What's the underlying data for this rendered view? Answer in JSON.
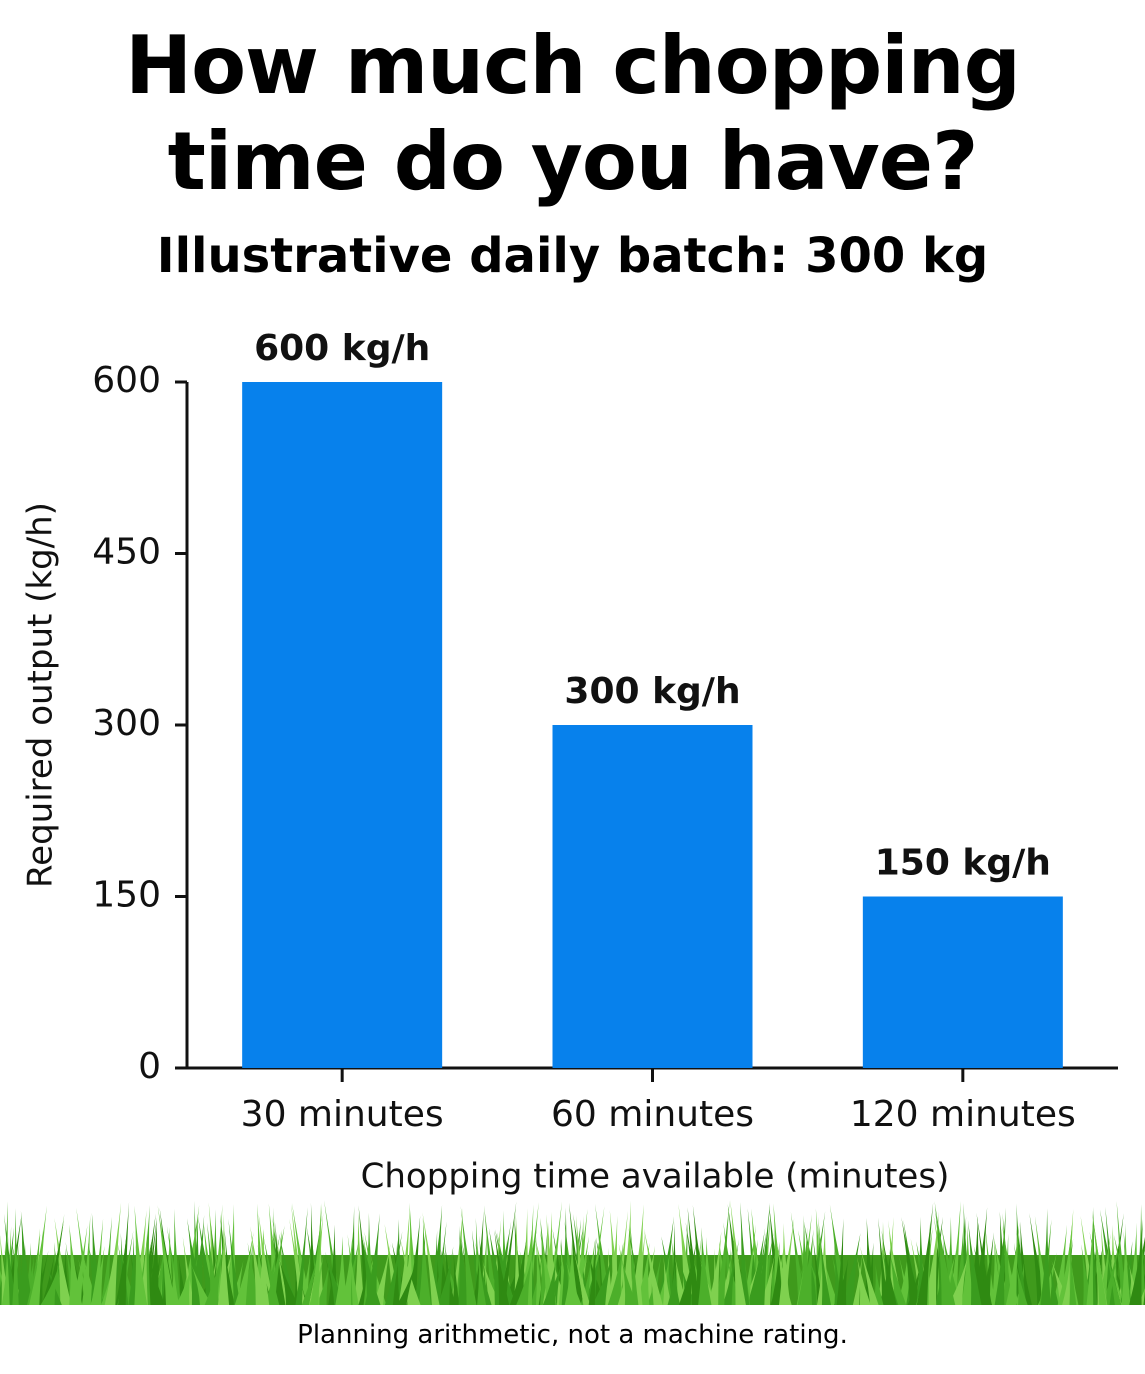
{
  "chart_data": {
    "type": "bar",
    "title": "How much chopping time do you have?",
    "subtitle": "Illustrative daily batch: 300 kg",
    "categories": [
      "30 minutes",
      "60 minutes",
      "120 minutes"
    ],
    "values": [
      600,
      300,
      150
    ],
    "value_labels": [
      "600 kg/h",
      "300 kg/h",
      "150 kg/h"
    ],
    "color": "#0781ec",
    "ylim": [
      0,
      600
    ],
    "yticks": [
      0,
      150,
      300,
      450,
      600
    ],
    "y_label": "Required output (kg/h)",
    "x_label": "Chopping time available (minutes)",
    "note": "Planning arithmetic, not a machine rating."
  }
}
